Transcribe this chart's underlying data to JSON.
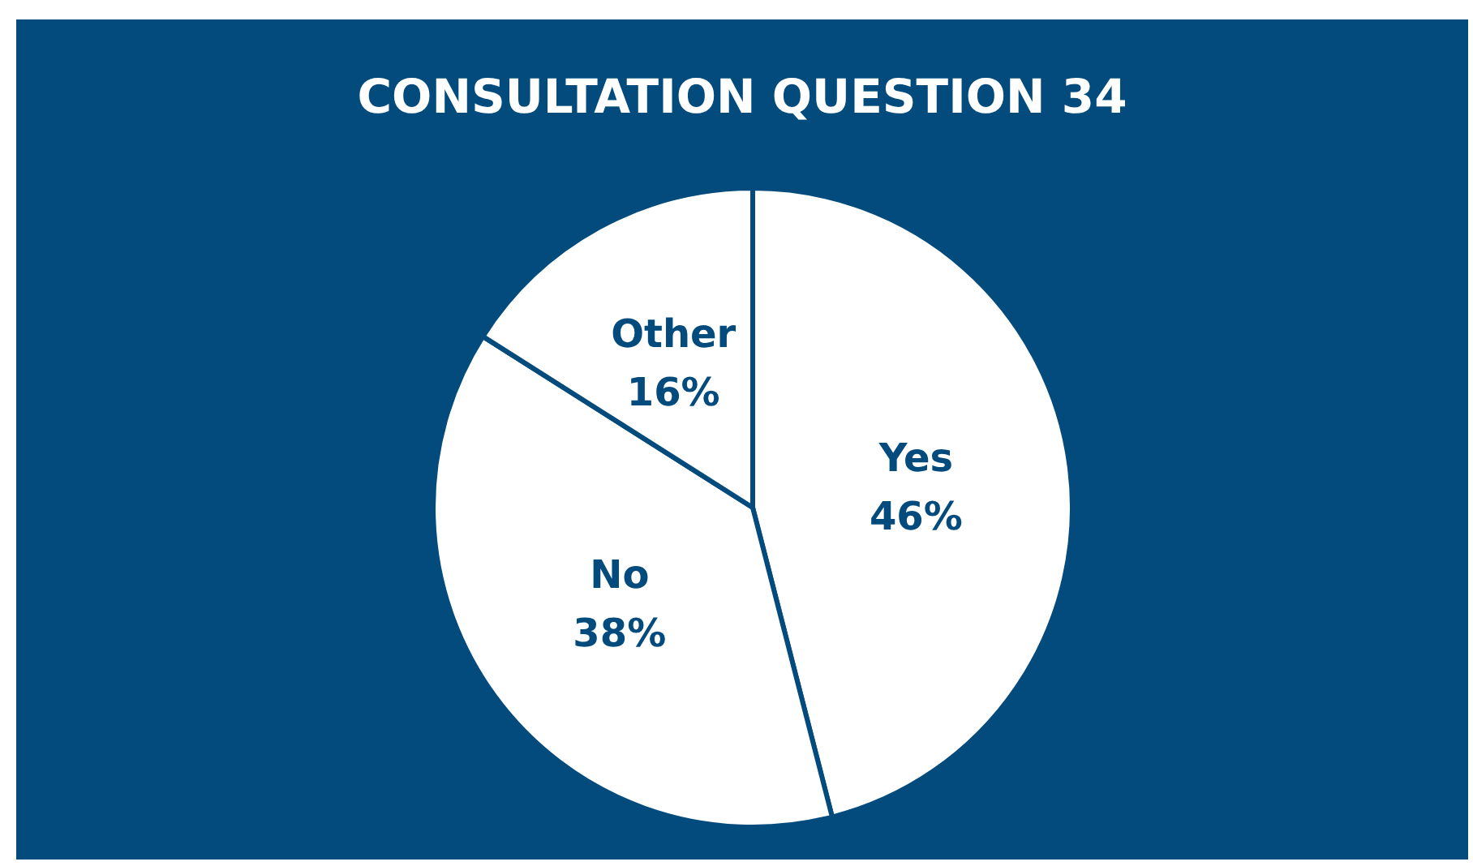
{
  "chart_data": {
    "type": "pie",
    "title": "CONSULTATION QUESTION 34",
    "categories": [
      "Yes",
      "No",
      "Other"
    ],
    "values": [
      46,
      38,
      16
    ],
    "value_labels": [
      "46%",
      "38%",
      "16%"
    ],
    "colors": [
      "#ffffff",
      "#ffffff",
      "#ffffff"
    ],
    "legend": false
  }
}
